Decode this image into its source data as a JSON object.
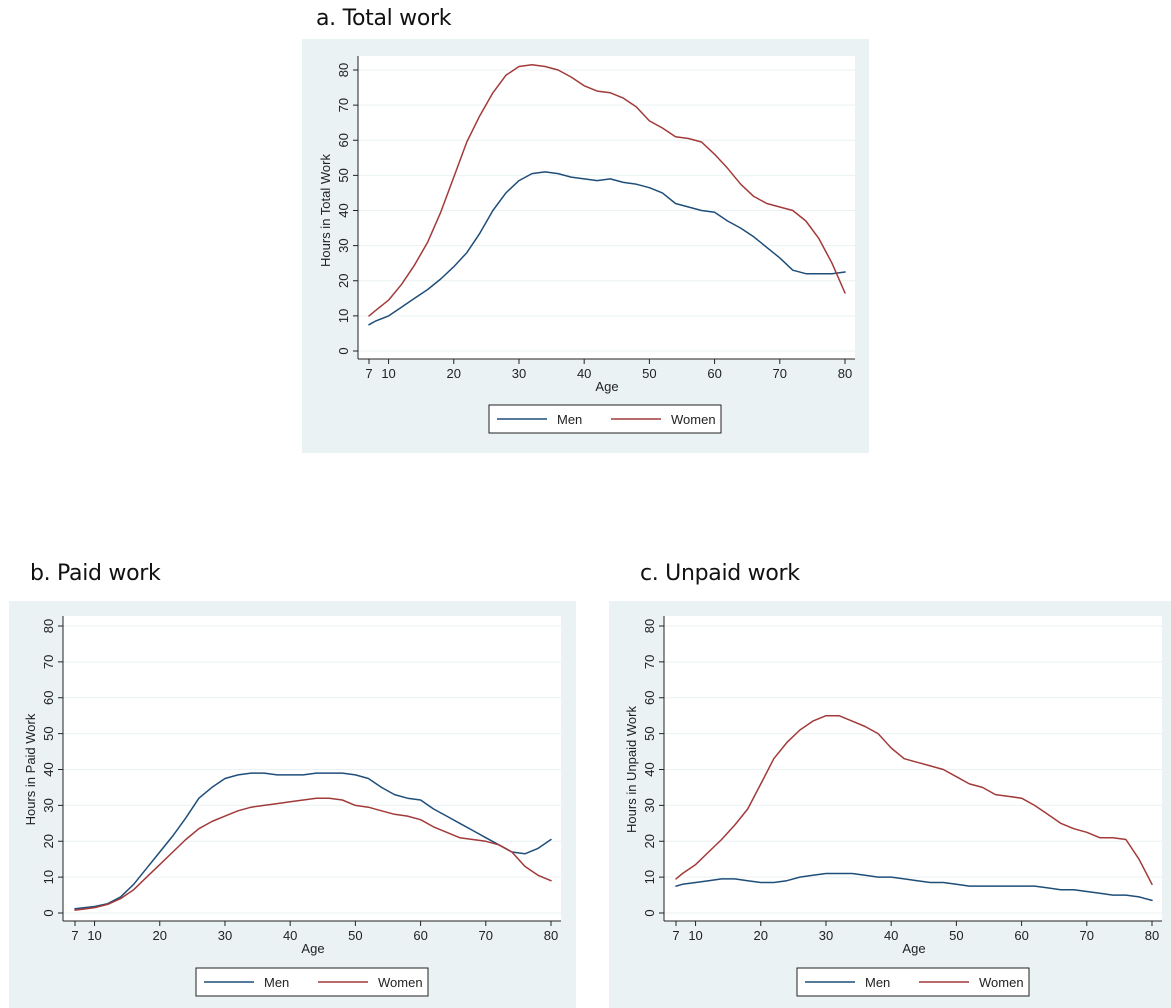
{
  "colors": {
    "men": "#1f4e79",
    "women": "#a23a3a",
    "panel_bg": "#eaf2f3"
  },
  "chart_data": [
    {
      "id": "a",
      "panel_title": "a. Total work",
      "type": "line",
      "xlabel": "Age",
      "ylabel": "Hours in Total Work",
      "xlim": [
        7,
        80
      ],
      "ylim": [
        0,
        80
      ],
      "xticks": [
        7,
        10,
        20,
        30,
        40,
        50,
        60,
        70,
        80
      ],
      "yticks": [
        0,
        10,
        20,
        30,
        40,
        50,
        60,
        70,
        80
      ],
      "grid": true,
      "legend": [
        "Men",
        "Women"
      ],
      "legend_position": "bottom",
      "series": [
        {
          "name": "Men",
          "color": "#1f4e79",
          "x": [
            7,
            8,
            10,
            12,
            14,
            16,
            18,
            20,
            22,
            24,
            26,
            28,
            30,
            32,
            34,
            36,
            38,
            40,
            42,
            44,
            46,
            48,
            50,
            52,
            54,
            56,
            58,
            60,
            62,
            64,
            66,
            68,
            70,
            72,
            74,
            76,
            78,
            80
          ],
          "values": [
            7.5,
            8.5,
            10,
            12.5,
            15,
            17.5,
            20.5,
            24,
            28,
            33.5,
            40,
            45,
            48.5,
            50.5,
            51,
            50.5,
            49.5,
            49,
            48.5,
            49,
            48,
            47.5,
            46.5,
            45,
            42,
            41,
            40,
            39.5,
            37,
            35,
            32.5,
            29.5,
            26.5,
            23,
            22,
            22,
            22,
            22.5
          ]
        },
        {
          "name": "Women",
          "color": "#a23a3a",
          "x": [
            7,
            8,
            10,
            12,
            14,
            16,
            18,
            20,
            22,
            24,
            26,
            28,
            30,
            32,
            34,
            36,
            38,
            40,
            42,
            44,
            46,
            48,
            50,
            52,
            54,
            56,
            58,
            60,
            62,
            64,
            66,
            68,
            70,
            72,
            74,
            76,
            78,
            80
          ],
          "values": [
            10,
            11.5,
            14.5,
            19,
            24.5,
            31,
            39.5,
            49.5,
            59.5,
            67,
            73.5,
            78.5,
            81,
            81.5,
            81,
            80,
            78,
            75.5,
            74,
            73.5,
            72,
            69.5,
            65.5,
            63.5,
            61,
            60.5,
            59.5,
            56,
            52,
            47.5,
            44,
            42,
            41,
            40,
            37,
            32,
            25,
            16.5
          ]
        }
      ]
    },
    {
      "id": "b",
      "panel_title": "b. Paid work",
      "type": "line",
      "xlabel": "Age",
      "ylabel": "Hours in Paid Work",
      "xlim": [
        7,
        80
      ],
      "ylim": [
        0,
        80
      ],
      "xticks": [
        7,
        10,
        20,
        30,
        40,
        50,
        60,
        70,
        80
      ],
      "yticks": [
        0,
        10,
        20,
        30,
        40,
        50,
        60,
        70,
        80
      ],
      "grid": true,
      "legend": [
        "Men",
        "Women"
      ],
      "legend_position": "bottom",
      "series": [
        {
          "name": "Men",
          "color": "#1f4e79",
          "x": [
            7,
            8,
            10,
            12,
            14,
            16,
            18,
            20,
            22,
            24,
            26,
            28,
            30,
            32,
            34,
            36,
            38,
            40,
            42,
            44,
            46,
            48,
            50,
            52,
            54,
            56,
            58,
            60,
            62,
            64,
            66,
            68,
            70,
            72,
            74,
            76,
            78,
            80
          ],
          "values": [
            1.2,
            1.4,
            1.8,
            2.6,
            4.5,
            8,
            12.5,
            17,
            21.5,
            26.5,
            32,
            35,
            37.5,
            38.5,
            39,
            39,
            38.5,
            38.5,
            38.5,
            39,
            39,
            39,
            38.5,
            37.5,
            35,
            33,
            32,
            31.5,
            29,
            27,
            25,
            23,
            21,
            19,
            17,
            16.5,
            18,
            20.5
          ]
        },
        {
          "name": "Women",
          "color": "#a23a3a",
          "x": [
            7,
            8,
            10,
            12,
            14,
            16,
            18,
            20,
            22,
            24,
            26,
            28,
            30,
            32,
            34,
            36,
            38,
            40,
            42,
            44,
            46,
            48,
            50,
            52,
            54,
            56,
            58,
            60,
            62,
            64,
            66,
            68,
            70,
            72,
            74,
            76,
            78,
            80
          ],
          "values": [
            0.8,
            1,
            1.5,
            2.4,
            4,
            6.5,
            10,
            13.5,
            17,
            20.5,
            23.5,
            25.5,
            27,
            28.5,
            29.5,
            30,
            30.5,
            31,
            31.5,
            32,
            32,
            31.5,
            30,
            29.5,
            28.5,
            27.5,
            27,
            26,
            24,
            22.5,
            21,
            20.5,
            20,
            19,
            17,
            13,
            10.5,
            9
          ]
        }
      ]
    },
    {
      "id": "c",
      "panel_title": "c. Unpaid work",
      "type": "line",
      "xlabel": "Age",
      "ylabel": "Hours in Unpaid Work",
      "xlim": [
        7,
        80
      ],
      "ylim": [
        0,
        80
      ],
      "xticks": [
        7,
        10,
        20,
        30,
        40,
        50,
        60,
        70,
        80
      ],
      "yticks": [
        0,
        10,
        20,
        30,
        40,
        50,
        60,
        70,
        80
      ],
      "grid": true,
      "legend": [
        "Men",
        "Women"
      ],
      "legend_position": "bottom",
      "series": [
        {
          "name": "Men",
          "color": "#1f4e79",
          "x": [
            7,
            8,
            10,
            12,
            14,
            16,
            18,
            20,
            22,
            24,
            26,
            28,
            30,
            32,
            34,
            36,
            38,
            40,
            42,
            44,
            46,
            48,
            50,
            52,
            54,
            56,
            58,
            60,
            62,
            64,
            66,
            68,
            70,
            72,
            74,
            76,
            78,
            80
          ],
          "values": [
            7.5,
            8,
            8.5,
            9,
            9.5,
            9.5,
            9,
            8.5,
            8.5,
            9,
            10,
            10.5,
            11,
            11,
            11,
            10.5,
            10,
            10,
            9.5,
            9,
            8.5,
            8.5,
            8,
            7.5,
            7.5,
            7.5,
            7.5,
            7.5,
            7.5,
            7,
            6.5,
            6.5,
            6,
            5.5,
            5,
            5,
            4.5,
            3.5
          ]
        },
        {
          "name": "Women",
          "color": "#a23a3a",
          "x": [
            7,
            8,
            10,
            12,
            14,
            16,
            18,
            20,
            22,
            24,
            26,
            28,
            30,
            32,
            34,
            36,
            38,
            40,
            42,
            44,
            46,
            48,
            50,
            52,
            54,
            56,
            58,
            60,
            62,
            64,
            66,
            68,
            70,
            72,
            74,
            76,
            78,
            80
          ],
          "values": [
            9.5,
            11,
            13.5,
            17,
            20.5,
            24.5,
            29,
            36,
            43,
            47.5,
            51,
            53.5,
            55,
            55,
            53.5,
            52,
            50,
            46,
            43,
            42,
            41,
            40,
            38,
            36,
            35,
            33,
            32.5,
            32,
            30,
            27.5,
            25,
            23.5,
            22.5,
            21,
            21,
            20.5,
            15,
            8
          ]
        }
      ]
    }
  ]
}
